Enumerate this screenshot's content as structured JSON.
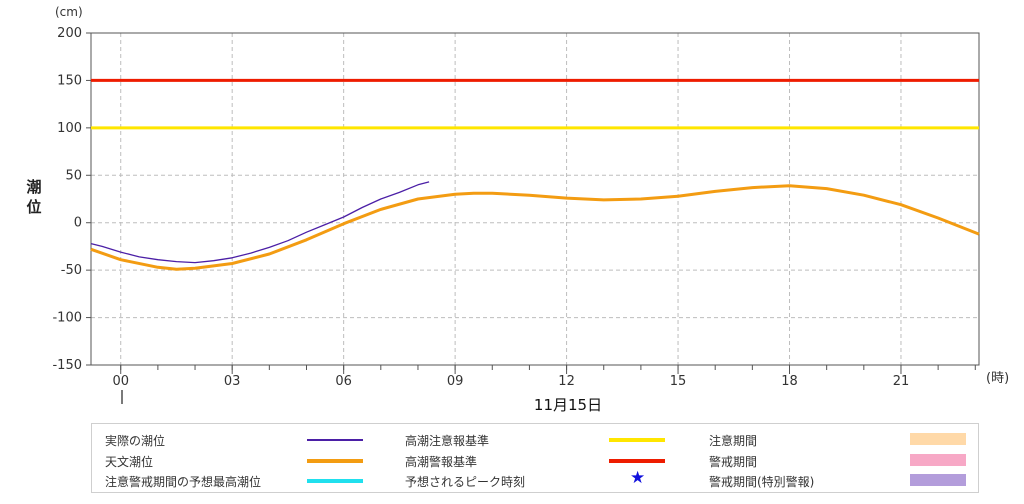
{
  "chart_data": {
    "type": "line",
    "ylabel": "潮位",
    "yunit": "(cm)",
    "xunit": "(時)",
    "ylim": [
      -150,
      200
    ],
    "yticks": [
      200,
      150,
      100,
      50,
      0,
      -50,
      -100,
      -150
    ],
    "xticks": [
      "00",
      "03",
      "06",
      "09",
      "12",
      "15",
      "18",
      "21"
    ],
    "xlim": [
      -0.8,
      23.1
    ],
    "date_label": "11月15日",
    "grid": true,
    "thresholds": [
      {
        "name": "高潮注意報基準",
        "value": 100,
        "color": "#ffe600"
      },
      {
        "name": "高潮警報基準",
        "value": 150,
        "color": "#ee1c00"
      }
    ],
    "series": [
      {
        "name": "実際の潮位",
        "color": "#4b1fa6",
        "x": [
          -0.8,
          -0.5,
          0,
          0.5,
          1,
          1.5,
          2,
          2.5,
          3,
          3.5,
          4,
          4.5,
          5,
          5.5,
          6,
          6.5,
          7,
          7.5,
          8,
          8.3
        ],
        "y": [
          -22,
          -25,
          -31,
          -36,
          -39,
          -41,
          -42,
          -40,
          -37,
          -32,
          -26,
          -19,
          -10,
          -2,
          6,
          16,
          25,
          32,
          40,
          43
        ]
      },
      {
        "name": "天文潮位",
        "color": "#f39c12",
        "x": [
          -0.8,
          0,
          1,
          1.5,
          2,
          3,
          4,
          5,
          6,
          7,
          8,
          9,
          9.5,
          10,
          11,
          12,
          13,
          14,
          15,
          16,
          17,
          18,
          19,
          20,
          21,
          22,
          23.1
        ],
        "y": [
          -28,
          -39,
          -47,
          -49,
          -48,
          -43,
          -33,
          -18,
          -1,
          14,
          25,
          30,
          31,
          31,
          29,
          26,
          24,
          25,
          28,
          33,
          37,
          39,
          36,
          29,
          19,
          5,
          -12
        ]
      }
    ]
  },
  "legend": {
    "actual": "実際の潮位",
    "astronomical": "天文潮位",
    "predicted_peak": "注意警戒期間の予想最高潮位",
    "advisory_std": "高潮注意報基準",
    "warning_std": "高潮警報基準",
    "peak_time": "予想されるピーク時刻",
    "advisory_period": "注意期間",
    "warning_period": "警戒期間",
    "special_warning_period": "警戒期間(特別警報)"
  },
  "colors": {
    "actual": "#4b1fa6",
    "astronomical": "#f39c12",
    "predicted_peak": "#20e0ee",
    "advisory_std": "#ffe600",
    "warning_std": "#ee1c00",
    "peak_star": "#1010dd",
    "advisory_period": "#ffd9a8",
    "warning_period": "#f7a8c6",
    "special_warning_period": "#b39ddb"
  }
}
